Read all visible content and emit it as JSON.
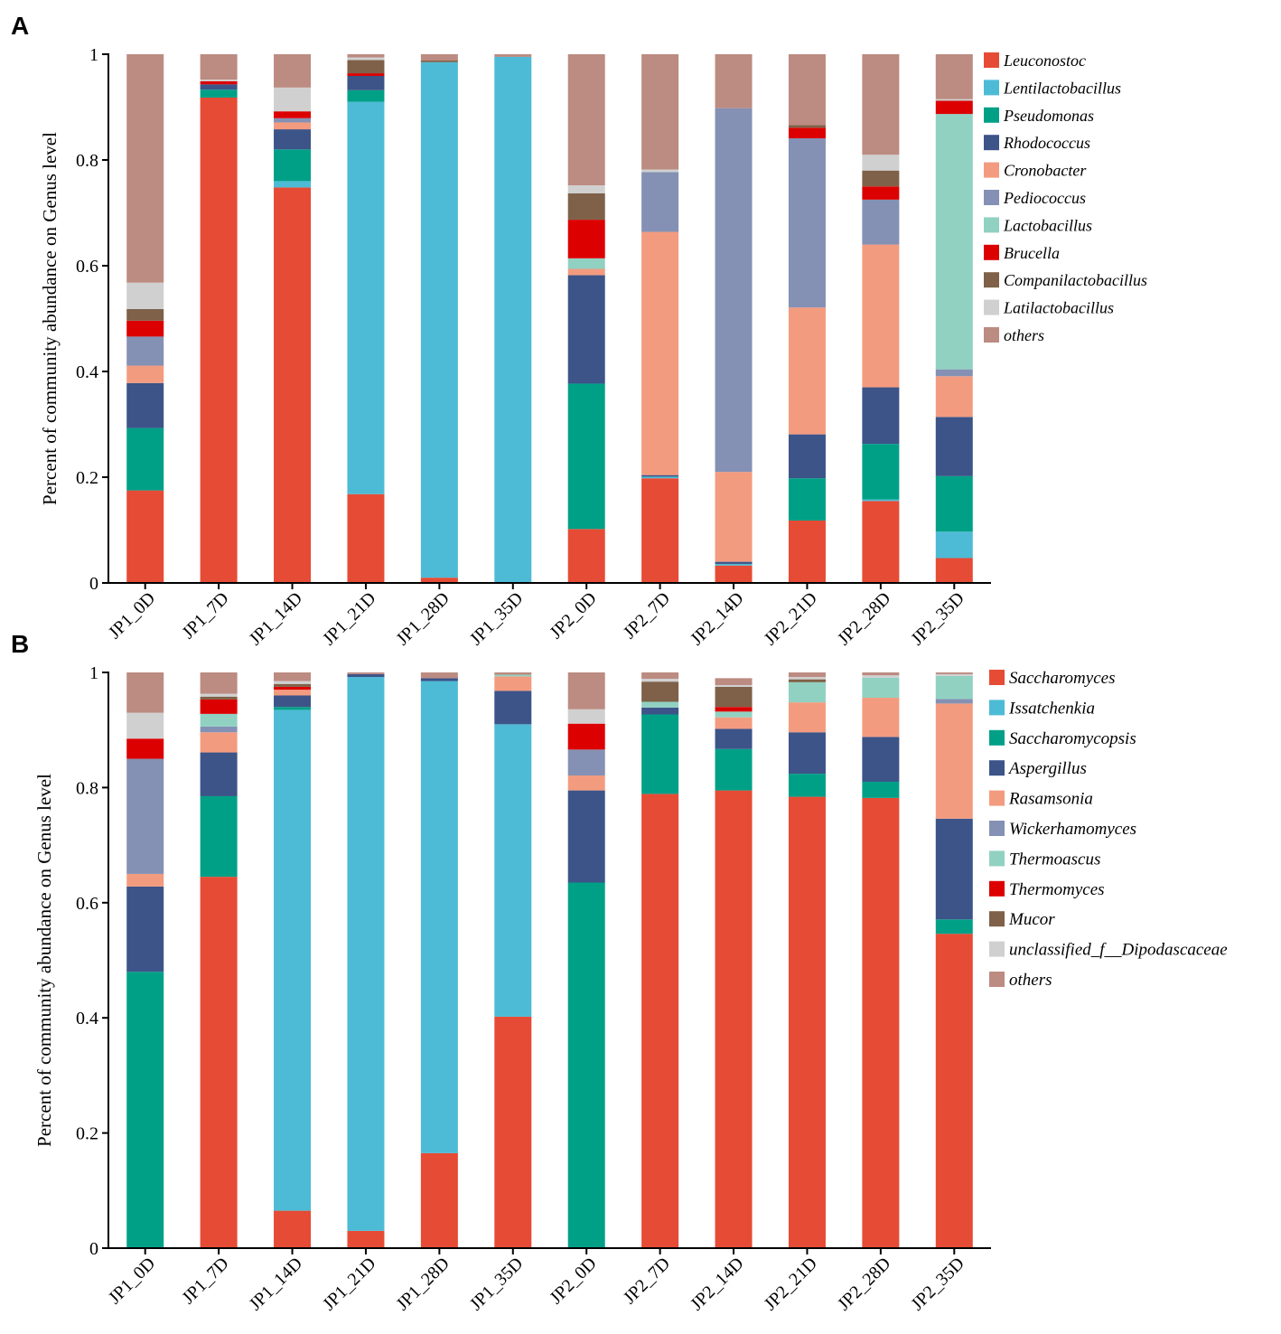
{
  "chart_data": [
    {
      "type": "bar",
      "stacked": true,
      "panel_label": "A",
      "ylabel": "Percent of community abundance on Genus level",
      "ylim": [
        0,
        1
      ],
      "yticks": [
        "0",
        "0.2",
        "0.4",
        "0.6",
        "0.8",
        "1"
      ],
      "categories": [
        "JP1_0D",
        "JP1_7D",
        "JP1_14D",
        "JP1_21D",
        "JP1_28D",
        "JP1_35D",
        "JP2_0D",
        "JP2_7D",
        "JP2_14D",
        "JP2_21D",
        "JP2_28D",
        "JP2_35D"
      ],
      "legend_position": "right",
      "series": [
        {
          "name": "Leuconostoc",
          "color": "#E64B35",
          "values": [
            0.175,
            0.918,
            0.748,
            0.168,
            0.01,
            0.0,
            0.102,
            0.198,
            0.033,
            0.118,
            0.155,
            0.047
          ]
        },
        {
          "name": "Lentilactobacillus",
          "color": "#4DBBD5",
          "values": [
            0.0,
            0.0,
            0.012,
            0.742,
            0.975,
            0.995,
            0.0,
            0.003,
            0.003,
            0.0,
            0.003,
            0.05
          ]
        },
        {
          "name": "Pseudomonas",
          "color": "#00A087",
          "values": [
            0.118,
            0.015,
            0.06,
            0.022,
            0.0,
            0.0,
            0.275,
            0.0,
            0.0,
            0.08,
            0.105,
            0.105
          ]
        },
        {
          "name": "Rhodococcus",
          "color": "#3C5488",
          "values": [
            0.085,
            0.01,
            0.038,
            0.027,
            0.0,
            0.0,
            0.205,
            0.003,
            0.004,
            0.083,
            0.107,
            0.112
          ]
        },
        {
          "name": "Cronobacter",
          "color": "#F39B7F",
          "values": [
            0.033,
            0.0,
            0.013,
            0.0,
            0.0,
            0.0,
            0.012,
            0.46,
            0.17,
            0.24,
            0.27,
            0.077
          ]
        },
        {
          "name": "Pediococcus",
          "color": "#8491B4",
          "values": [
            0.055,
            0.0,
            0.008,
            0.0,
            0.0,
            0.0,
            0.0,
            0.113,
            0.688,
            0.32,
            0.085,
            0.013
          ]
        },
        {
          "name": "Lactobacillus",
          "color": "#91D1C2",
          "values": [
            0.0,
            0.0,
            0.0,
            0.0,
            0.0,
            0.0,
            0.02,
            0.0,
            0.0,
            0.0,
            0.0,
            0.483
          ]
        },
        {
          "name": "Brucella",
          "color": "#DC0000",
          "values": [
            0.03,
            0.006,
            0.013,
            0.005,
            0.0,
            0.0,
            0.073,
            0.0,
            0.0,
            0.02,
            0.025,
            0.025
          ]
        },
        {
          "name": "Companilactobacillus",
          "color": "#7E6148",
          "values": [
            0.022,
            0.0,
            0.0,
            0.025,
            0.003,
            0.0,
            0.05,
            0.0,
            0.0,
            0.005,
            0.03,
            0.0
          ]
        },
        {
          "name": "Latilactobacillus",
          "color": "#D0D0D0",
          "values": [
            0.05,
            0.003,
            0.045,
            0.005,
            0.0,
            0.0,
            0.015,
            0.005,
            0.0,
            0.0,
            0.03,
            0.003
          ]
        },
        {
          "name": "others",
          "color": "#BC8B81",
          "values": [
            0.432,
            0.048,
            0.063,
            0.006,
            0.012,
            0.005,
            0.248,
            0.218,
            0.102,
            0.134,
            0.19,
            0.085
          ]
        }
      ]
    },
    {
      "type": "bar",
      "stacked": true,
      "panel_label": "B",
      "ylabel": "Percent of community abundance on Genus level",
      "ylim": [
        0,
        1
      ],
      "yticks": [
        "0",
        "0.2",
        "0.4",
        "0.6",
        "0.8",
        "1"
      ],
      "categories": [
        "JP1_0D",
        "JP1_7D",
        "JP1_14D",
        "JP1_21D",
        "JP1_28D",
        "JP1_35D",
        "JP2_0D",
        "JP2_7D",
        "JP2_14D",
        "JP2_21D",
        "JP2_28D",
        "JP2_35D"
      ],
      "legend_position": "right",
      "series": [
        {
          "name": "Saccharomyces",
          "color": "#E64B35",
          "values": [
            0.0,
            0.645,
            0.065,
            0.03,
            0.165,
            0.402,
            0.0,
            0.789,
            0.795,
            0.784,
            0.782,
            0.546
          ]
        },
        {
          "name": "Issatchenkia",
          "color": "#4DBBD5",
          "values": [
            0.0,
            0.0,
            0.87,
            0.962,
            0.82,
            0.508,
            0.0,
            0.0,
            0.0,
            0.0,
            0.0,
            0.0
          ]
        },
        {
          "name": "Saccharomycopsis",
          "color": "#00A087",
          "values": [
            0.48,
            0.14,
            0.005,
            0.0,
            0.0,
            0.0,
            0.635,
            0.138,
            0.072,
            0.04,
            0.028,
            0.025
          ]
        },
        {
          "name": "Aspergillus",
          "color": "#3C5488",
          "values": [
            0.148,
            0.076,
            0.02,
            0.005,
            0.005,
            0.058,
            0.16,
            0.012,
            0.035,
            0.072,
            0.078,
            0.175
          ]
        },
        {
          "name": "Rasamsonia",
          "color": "#F39B7F",
          "values": [
            0.022,
            0.035,
            0.01,
            0.0,
            0.0,
            0.025,
            0.026,
            0.0,
            0.02,
            0.052,
            0.068,
            0.2
          ]
        },
        {
          "name": "Wickerhamomyces",
          "color": "#8491B4",
          "values": [
            0.2,
            0.01,
            0.0,
            0.0,
            0.0,
            0.0,
            0.045,
            0.0,
            0.0,
            0.0,
            0.0,
            0.008
          ]
        },
        {
          "name": "Thermoascus",
          "color": "#91D1C2",
          "values": [
            0.0,
            0.022,
            0.0,
            0.0,
            0.0,
            0.003,
            0.0,
            0.01,
            0.01,
            0.035,
            0.035,
            0.04
          ]
        },
        {
          "name": "Thermomyces",
          "color": "#DC0000",
          "values": [
            0.035,
            0.025,
            0.005,
            0.0,
            0.0,
            0.0,
            0.045,
            0.0,
            0.008,
            0.0,
            0.0,
            0.0
          ]
        },
        {
          "name": "Mucor",
          "color": "#7E6148",
          "values": [
            0.0,
            0.005,
            0.005,
            0.0,
            0.0,
            0.0,
            0.0,
            0.035,
            0.035,
            0.005,
            0.0,
            0.0
          ]
        },
        {
          "name": "unclassified_f__Dipodascaceae",
          "color": "#D0D0D0",
          "values": [
            0.045,
            0.005,
            0.005,
            0.0,
            0.0,
            0.0,
            0.025,
            0.005,
            0.003,
            0.004,
            0.004,
            0.003
          ]
        },
        {
          "name": "others",
          "color": "#BC8B81",
          "values": [
            0.07,
            0.037,
            0.015,
            0.003,
            0.01,
            0.004,
            0.064,
            0.011,
            0.012,
            0.008,
            0.005,
            0.003
          ]
        }
      ]
    }
  ]
}
